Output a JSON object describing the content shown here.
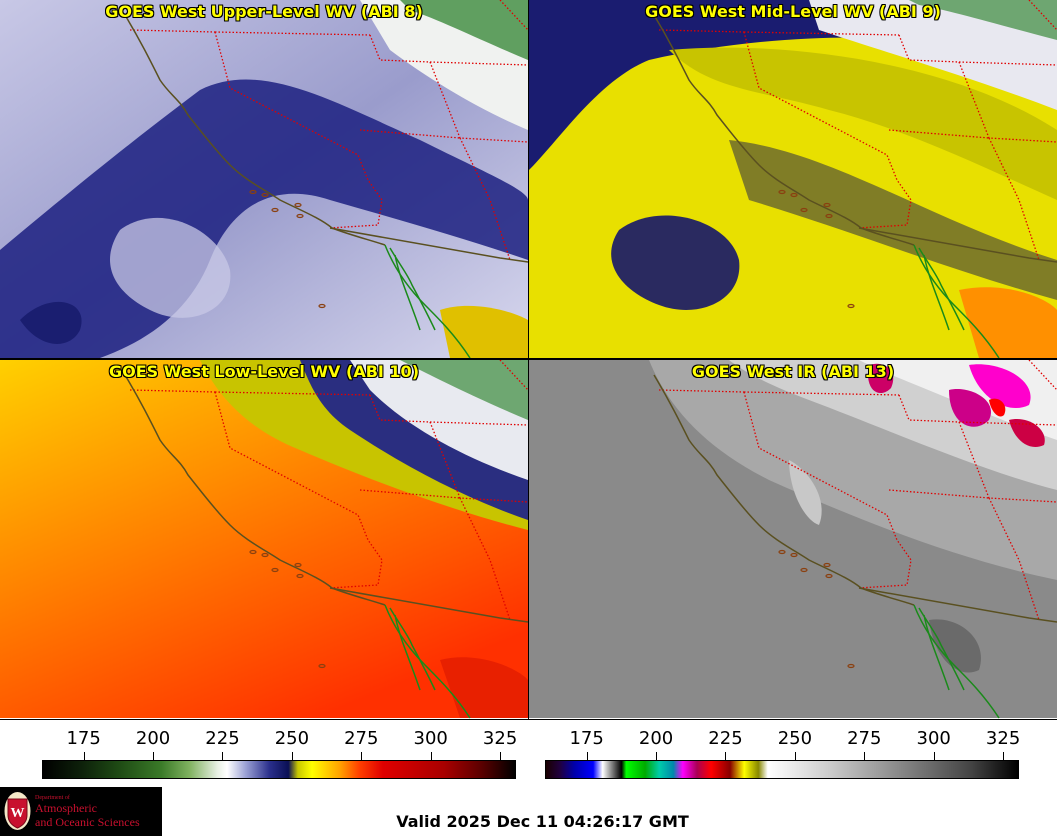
{
  "panels": [
    {
      "id": "panel-tl",
      "title": "GOES West Upper-Level WV (ABI 8)",
      "colortable": "wv"
    },
    {
      "id": "panel-tr",
      "title": "GOES West Mid-Level WV (ABI 9)",
      "colortable": "wv"
    },
    {
      "id": "panel-bl",
      "title": "GOES West Low-Level WV (ABI 10)",
      "colortable": "wv"
    },
    {
      "id": "panel-br",
      "title": "GOES West IR (ABI 13)",
      "colortable": "ir"
    }
  ],
  "colorbars": {
    "wv": {
      "ticks": [
        "175",
        "200",
        "225",
        "250",
        "275",
        "300",
        "325"
      ],
      "values": [
        175,
        200,
        225,
        250,
        275,
        300,
        325
      ],
      "range": [
        160,
        330
      ]
    },
    "ir": {
      "ticks": [
        "175",
        "200",
        "225",
        "250",
        "275",
        "300",
        "325"
      ],
      "values": [
        175,
        200,
        225,
        250,
        275,
        300,
        325
      ],
      "range": [
        160,
        330
      ]
    }
  },
  "colors": {
    "state_borders": "#e00000",
    "coastline_land": "#5a5020",
    "coastline_mexico": "#1a8a1a"
  },
  "logo": {
    "dept": "Department of",
    "line1": "Atmospheric",
    "line2": "and Oceanic Sciences",
    "seal_letter": "W"
  },
  "footer": {
    "valid_time": "Valid 2025 Dec 11 04:26:17 GMT"
  }
}
